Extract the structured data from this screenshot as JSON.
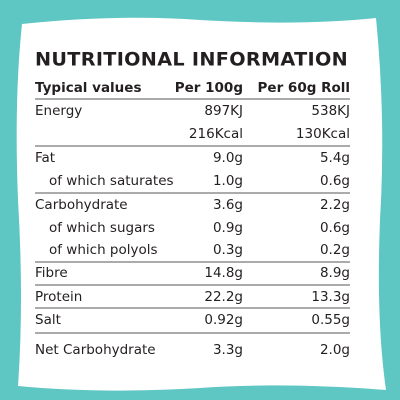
{
  "title": "NUTRITIONAL INFORMATION",
  "table": {
    "header": [
      "Typical values",
      "Per 100g",
      "Per 60g Roll"
    ],
    "rows": [
      {
        "label": "Energy",
        "per_100g": "897KJ",
        "per_roll": "538KJ"
      },
      {
        "per_100g": "216Kcal",
        "per_roll": "130Kcal"
      },
      {
        "label": "Fat",
        "per_100g": "9.0g",
        "per_roll": "5.4g"
      },
      {
        "label": "of which saturates",
        "per_100g": "1.0g",
        "per_roll": "0.6g"
      },
      {
        "label": "Carbohydrate",
        "per_100g": "3.6g",
        "per_roll": "2.2g"
      },
      {
        "label": "of which sugars",
        "per_100g": "0.9g",
        "per_roll": "0.6g"
      },
      {
        "label": "of which polyols",
        "per_100g": "0.3g",
        "per_roll": "0.2g"
      },
      {
        "label": "Fibre",
        "per_100g": "14.8g",
        "per_roll": "8.9g"
      },
      {
        "label": "Protein",
        "per_100g": "22.2g",
        "per_roll": "13.3g"
      },
      {
        "label": "Salt",
        "per_100g": "0.92g",
        "per_roll": "0.55g"
      },
      {
        "label": "Net Carbohydrate",
        "per_100g": "3.3g",
        "per_roll": "2.0g"
      }
    ]
  }
}
